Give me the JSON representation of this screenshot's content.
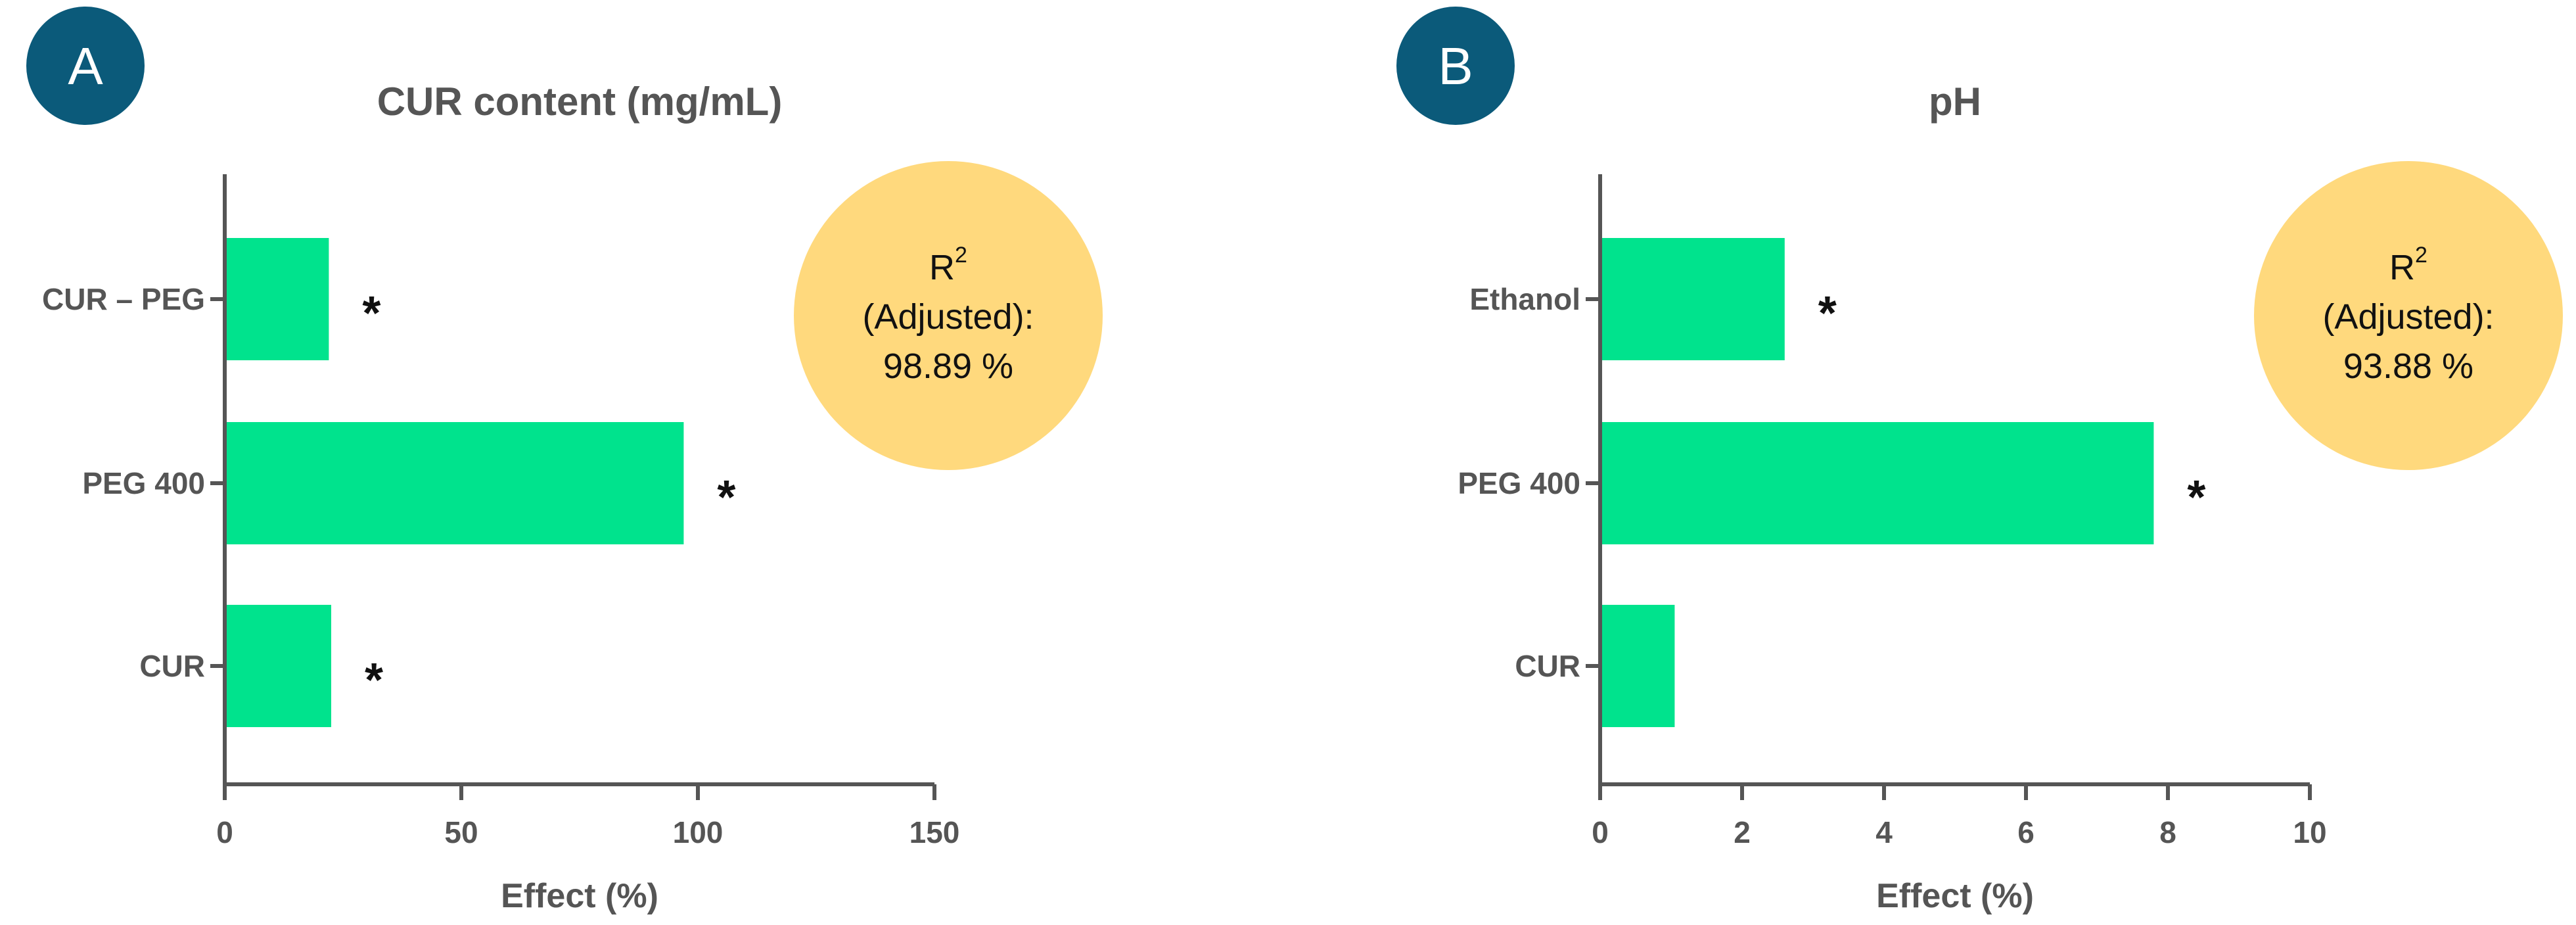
{
  "colors": {
    "bar": "#00E38D",
    "axis": "#555555",
    "badge": "#0B5A7A",
    "r2_circle": "#FFD97D",
    "text": "#555555",
    "star": "#111111"
  },
  "r2": {
    "label": "R",
    "superscript": "2",
    "sublabel": "(Adjusted):"
  },
  "chart_data": [
    {
      "type": "bar",
      "orientation": "horizontal",
      "panel": "A",
      "title": "CUR content (mg/mL)",
      "xlabel": "Effect (%)",
      "ylabel": "",
      "categories": [
        "CUR – PEG",
        "PEG 400",
        "CUR"
      ],
      "values": [
        22,
        97,
        22.5
      ],
      "significant": [
        "*",
        "*",
        "*"
      ],
      "xlim": [
        0,
        150
      ],
      "xticks": [
        "0",
        "50",
        "100",
        "150"
      ],
      "r2_adjusted": "98.89 %",
      "grid": false
    },
    {
      "type": "bar",
      "orientation": "horizontal",
      "panel": "B",
      "title": "pH",
      "xlabel": "Effect (%)",
      "ylabel": "",
      "categories": [
        "Ethanol",
        "PEG 400",
        "CUR"
      ],
      "values": [
        2.6,
        7.8,
        1.05
      ],
      "significant": [
        "*",
        "*",
        ""
      ],
      "xlim": [
        0,
        10
      ],
      "xticks": [
        "0",
        "2",
        "4",
        "6",
        "8",
        "10"
      ],
      "r2_adjusted": "93.88 %",
      "grid": false
    }
  ]
}
